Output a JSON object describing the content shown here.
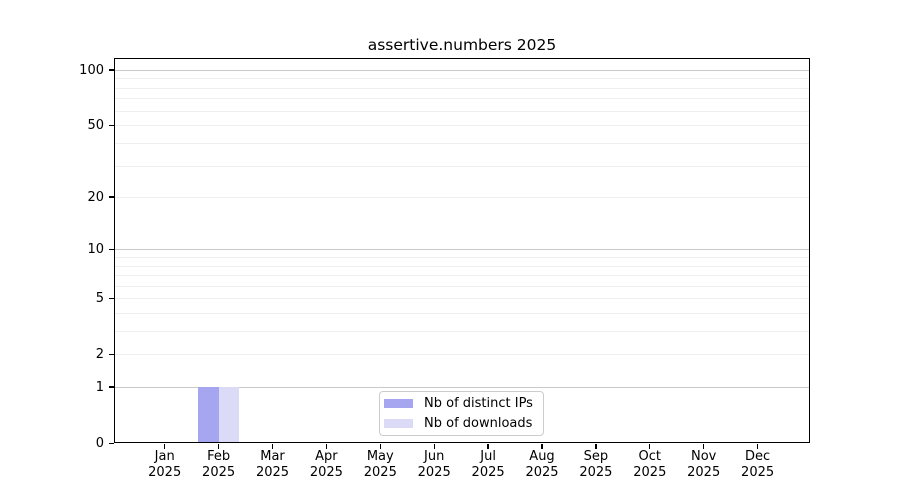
{
  "chart_data": {
    "type": "bar",
    "title": "assertive.numbers 2025",
    "categories": [
      {
        "month": "Jan",
        "year": "2025"
      },
      {
        "month": "Feb",
        "year": "2025"
      },
      {
        "month": "Mar",
        "year": "2025"
      },
      {
        "month": "Apr",
        "year": "2025"
      },
      {
        "month": "May",
        "year": "2025"
      },
      {
        "month": "Jun",
        "year": "2025"
      },
      {
        "month": "Jul",
        "year": "2025"
      },
      {
        "month": "Aug",
        "year": "2025"
      },
      {
        "month": "Sep",
        "year": "2025"
      },
      {
        "month": "Oct",
        "year": "2025"
      },
      {
        "month": "Nov",
        "year": "2025"
      },
      {
        "month": "Dec",
        "year": "2025"
      }
    ],
    "series": [
      {
        "name": "Nb of distinct IPs",
        "color": "#a5a5f0",
        "values": [
          0,
          1,
          0,
          0,
          0,
          0,
          0,
          0,
          0,
          0,
          0,
          0
        ]
      },
      {
        "name": "Nb of downloads",
        "color": "#dbdbf8",
        "values": [
          0,
          1,
          0,
          0,
          0,
          0,
          0,
          0,
          0,
          0,
          0,
          0
        ]
      }
    ],
    "y_axis": {
      "scale": "log1p",
      "tick_values": [
        0,
        1,
        2,
        5,
        10,
        20,
        50,
        100
      ],
      "tick_labels": [
        "0",
        "1",
        "2",
        "5",
        "10",
        "20",
        "50",
        "100"
      ],
      "range": [
        0,
        116
      ]
    },
    "gridlines": {
      "major": [
        1,
        10,
        100
      ],
      "minor": [
        2,
        3,
        4,
        5,
        6,
        7,
        8,
        9,
        20,
        30,
        40,
        50,
        60,
        70,
        80,
        90
      ]
    },
    "legend_position": "lower center",
    "grid": true,
    "colors": {
      "major_grid": "#c9c9c9",
      "minor_grid": "#efefef",
      "spine": "#000000",
      "text": "#000000",
      "background": "#ffffff"
    }
  }
}
